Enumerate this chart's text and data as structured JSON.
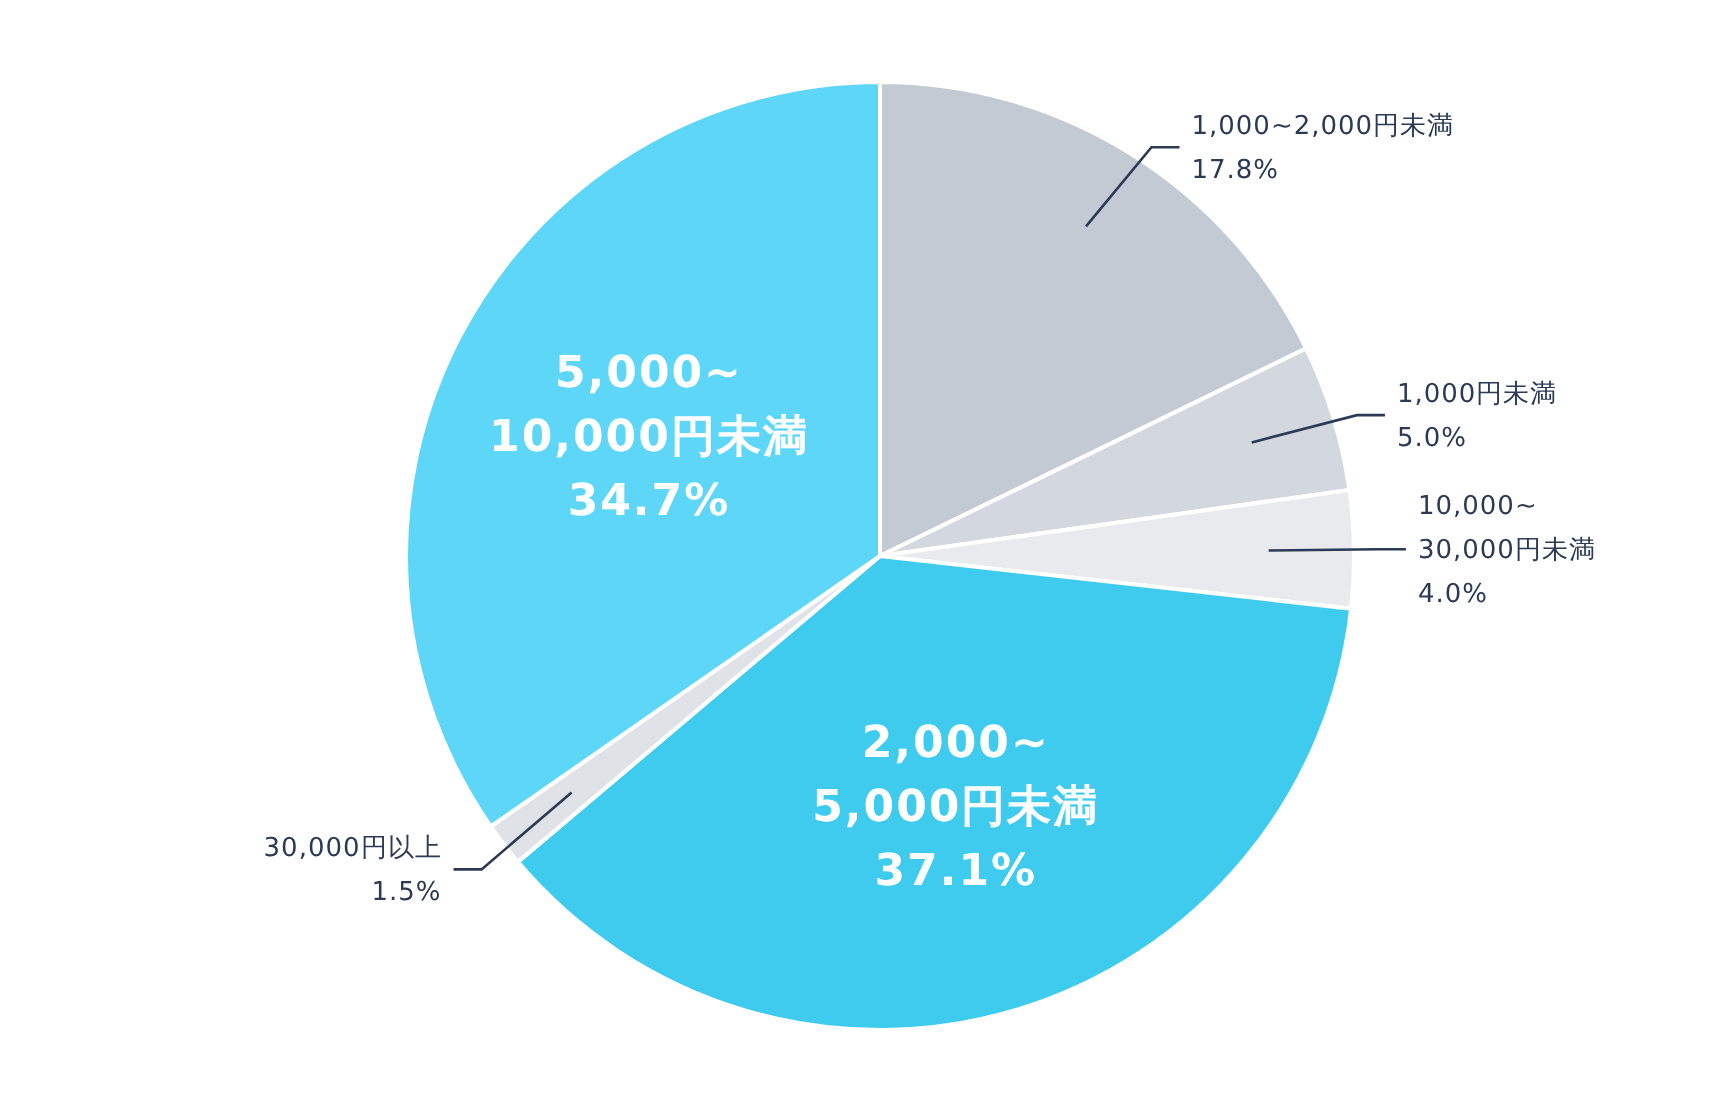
{
  "chart_data": {
    "type": "pie",
    "categories": [
      "1,000~2,000円未満",
      "1,000円未満",
      "10,000~30,000円未満",
      "2,000~5,000円未満",
      "30,000円以上",
      "5,000~10,000円未満"
    ],
    "values": [
      17.8,
      5.0,
      4.0,
      37.1,
      1.5,
      34.7
    ],
    "colors": [
      "#c4cad3",
      "#d3d7de",
      "#e8eaed",
      "#3ecbee",
      "#dfe2e6",
      "#5dd6f8"
    ],
    "value_labels": [
      "17.8%",
      "5.0%",
      "4.0%",
      "37.1%",
      "1.5%",
      "34.7%"
    ]
  }
}
